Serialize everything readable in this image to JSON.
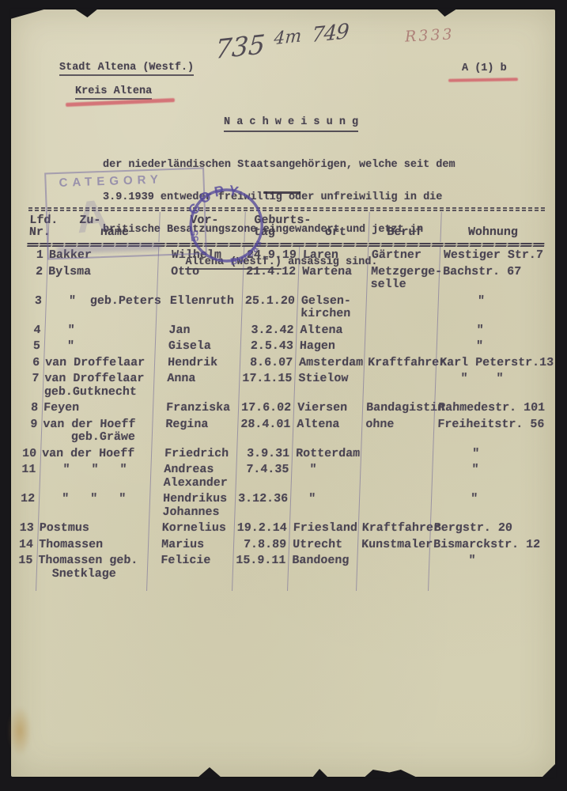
{
  "document": {
    "handwritten_ref": {
      "parts": [
        "735",
        "4m",
        "749"
      ]
    },
    "pencil_ref": "R333",
    "org_line1": "Stadt Altena (Westf.)",
    "org_line2": "Kreis Altena",
    "doc_class": "A (1) b",
    "title": "N a c h w e i s u n g",
    "paragraph": {
      "line1": "der niederländischen Staatsangehörigen, welche seit dem",
      "line2": "3.9.1939 entweder freiwillig oder unfreiwillig in die",
      "line3": "britische Besatzungszone eingewandert und jetzt in",
      "line4_underlined": "Altena (Westf.)",
      "line4_rest": " ansässig sind."
    },
    "stamps": {
      "category_label": "CATEGORY",
      "category_letter": "A",
      "copy_top": "COPY",
      "copy_left": "55",
      "copy_bottom": "Bureau"
    },
    "colors": {
      "paper": "#d5d0b4",
      "ink": "#47414e",
      "stamp_purple": "#5b4fa2",
      "red_pencil": "#cf5a62"
    }
  },
  "table": {
    "header": {
      "nr": "Lfd.\nNr.",
      "zuname": "    Zu-\n       name",
      "vorname": "    Vor-",
      "geburts": " Geburts-\n tag       ort",
      "beruf": "\nBeruf",
      "wohnung": "\nWohnung"
    },
    "rows": [
      {
        "nr": "1",
        "zuname": "Bakker",
        "vorname": "Wilhelm",
        "geb_tag": "24.9.19",
        "geb_ort": "Laren",
        "beruf": "Gärtner",
        "wohnung": "Westiger Str.7"
      },
      {
        "nr": "2",
        "zuname": "Bylsma",
        "vorname": "Otto",
        "geb_tag": "21.4.12",
        "geb_ort": "Wartena",
        "beruf": "Metzgerge-\nselle",
        "wohnung": "Bachstr. 67"
      },
      {
        "nr": "3",
        "zuname": "   \"  geb.Peters",
        "vorname": "Ellenruth",
        "geb_tag": "25.1.20",
        "geb_ort": "Gelsen-\nkirchen",
        "beruf": "",
        "wohnung": "     \""
      },
      {
        "nr": "4",
        "zuname": "   \"",
        "vorname": "Jan",
        "geb_tag": "3.2.42",
        "geb_ort": "Altena",
        "beruf": "",
        "wohnung": "     \""
      },
      {
        "nr": "5",
        "zuname": "   \"",
        "vorname": "Gisela",
        "geb_tag": "2.5.43",
        "geb_ort": "Hagen",
        "beruf": "",
        "wohnung": "     \""
      },
      {
        "nr": "6",
        "zuname": "van Droffelaar",
        "vorname": "Hendrik",
        "geb_tag": "8.6.07",
        "geb_ort": "Amsterdam",
        "beruf": "Kraftfahrer",
        "wohnung": "Karl Peterstr.13"
      },
      {
        "nr": "7",
        "zuname": "van Droffelaar\ngeb.Gutknecht",
        "vorname": "Anna",
        "geb_tag": "17.1.15",
        "geb_ort": "Stielow",
        "beruf": "",
        "wohnung": "   \"    \""
      },
      {
        "nr": "8",
        "zuname": "Feyen",
        "vorname": "Franziska",
        "geb_tag": "17.6.02",
        "geb_ort": "Viersen",
        "beruf": "Bandagistin",
        "wohnung": "Rahmedestr. 101"
      },
      {
        "nr": "9",
        "zuname": "van der Hoeff\n    geb.Gräwe",
        "vorname": "Regina",
        "geb_tag": "28.4.01",
        "geb_ort": "Altena",
        "beruf": "ohne",
        "wohnung": "Freiheitstr. 56"
      },
      {
        "nr": "10",
        "zuname": "van der Hoeff",
        "vorname": "Friedrich",
        "geb_tag": "3.9.31",
        "geb_ort": "Rotterdam",
        "beruf": "",
        "wohnung": "     \""
      },
      {
        "nr": "11",
        "zuname": "   \"   \"   \"",
        "vorname": "Andreas\nAlexander",
        "geb_tag": "7.4.35",
        "geb_ort": "  \"",
        "beruf": "",
        "wohnung": "     \""
      },
      {
        "nr": "12",
        "zuname": "   \"   \"   \"",
        "vorname": "Hendrikus\nJohannes",
        "geb_tag": "3.12.36",
        "geb_ort": "  \"",
        "beruf": "",
        "wohnung": "     \""
      },
      {
        "nr": "13",
        "zuname": "Postmus",
        "vorname": "Kornelius",
        "geb_tag": "19.2.14",
        "geb_ort": "Friesland",
        "beruf": "Kraftfahrer",
        "wohnung": "Bergstr. 20"
      },
      {
        "nr": "14",
        "zuname": "Thomassen",
        "vorname": "Marius",
        "geb_tag": "7.8.89",
        "geb_ort": "Utrecht",
        "beruf": "Kunstmaler",
        "wohnung": "Bismarckstr. 12"
      },
      {
        "nr": "15",
        "zuname": "Thomassen geb.\n  Snetklage",
        "vorname": "Felicie",
        "geb_tag": "15.9.11",
        "geb_ort": "Bandoeng",
        "beruf": "",
        "wohnung": "     \""
      }
    ]
  }
}
